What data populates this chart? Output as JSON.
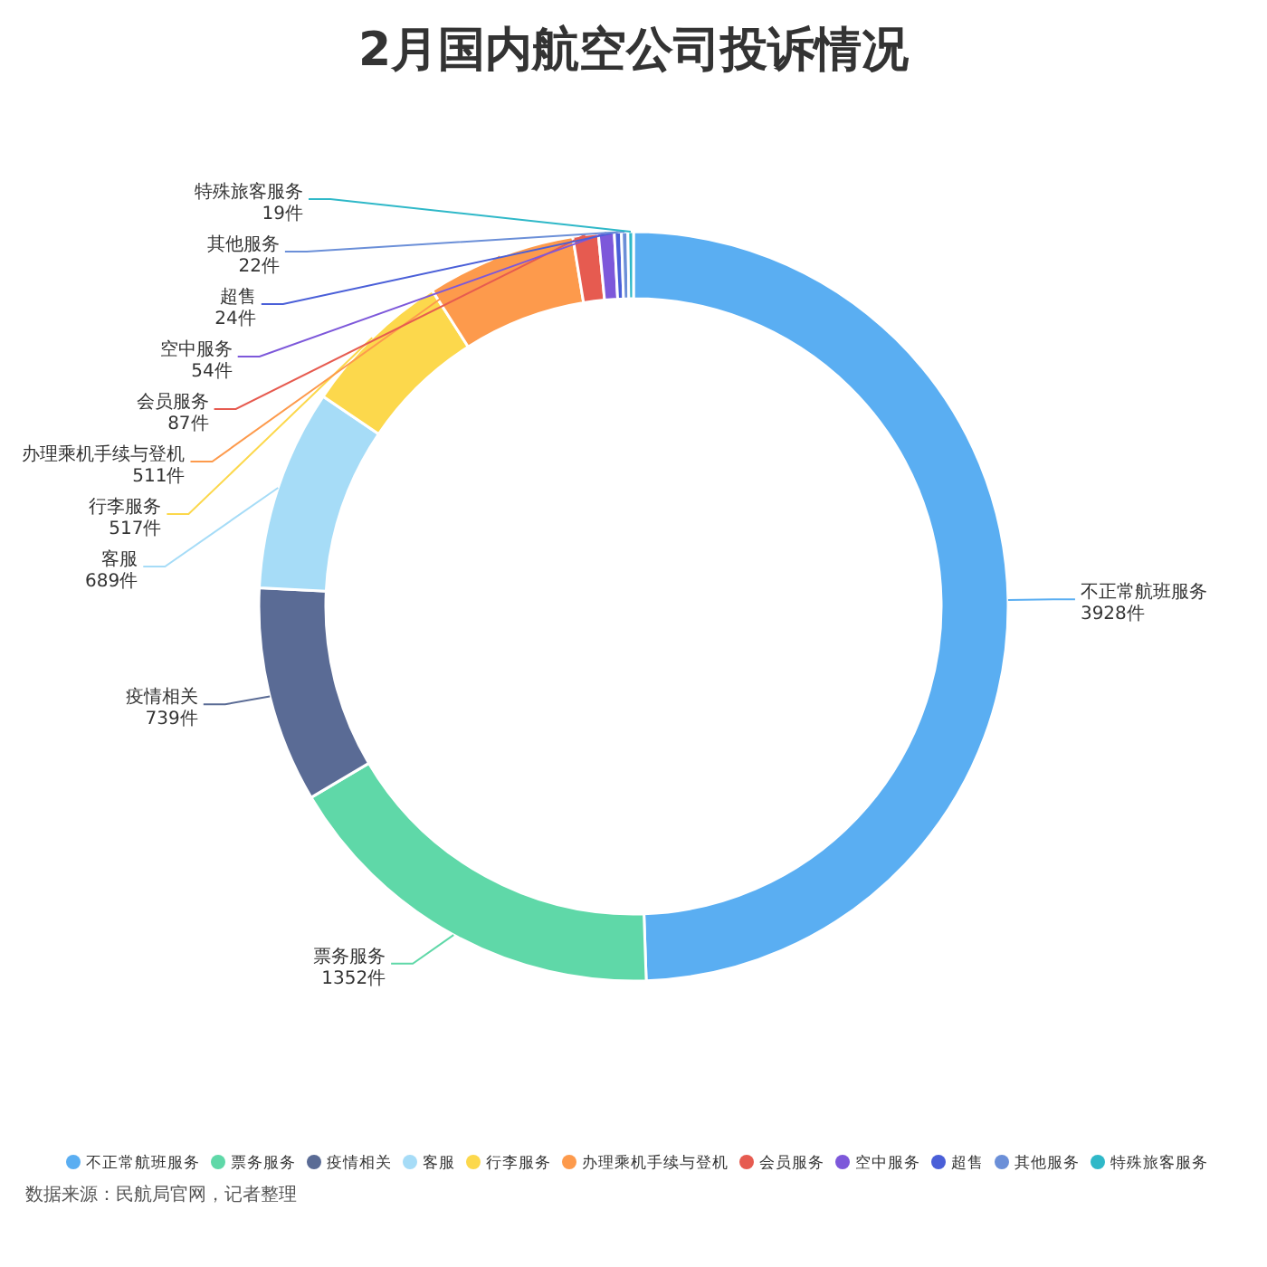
{
  "chart_data": {
    "type": "donut",
    "title": "2月国内航空公司投诉情况",
    "categories": [
      "不正常航班服务",
      "票务服务",
      "疫情相关",
      "客服",
      "行李服务",
      "办理乘机手续与登机",
      "会员服务",
      "空中服务",
      "超售",
      "其他服务",
      "特殊旅客服务"
    ],
    "values": [
      3928,
      1352,
      739,
      689,
      517,
      511,
      87,
      54,
      24,
      22,
      19
    ],
    "value_labels": [
      "3928件",
      "1352件",
      "739件",
      "689件",
      "517件",
      "511件",
      "87件",
      "54件",
      "24件",
      "22件",
      "19件"
    ],
    "colors": [
      "#5aaef2",
      "#5fd8a8",
      "#5a6b95",
      "#a6dcf7",
      "#fcd84c",
      "#fd9a4c",
      "#e65b50",
      "#7d58da",
      "#4a5fd8",
      "#6b8fd8",
      "#2fb8c8"
    ],
    "legend": "bottom",
    "annotations": [
      "数据来源：民航局官网，记者整理"
    ]
  }
}
